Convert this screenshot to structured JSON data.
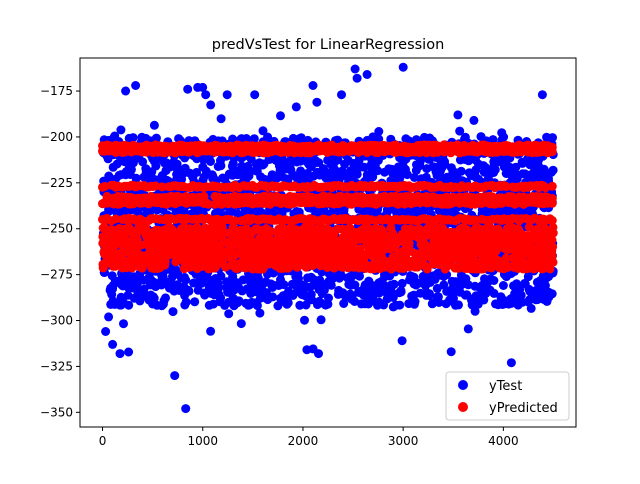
{
  "chart_data": {
    "type": "scatter",
    "title": "predVsTest for LinearRegression",
    "xlabel": "",
    "ylabel": "",
    "xlim": [
      -225,
      4725
    ],
    "ylim": [
      -358,
      -157
    ],
    "xticks": [
      0,
      1000,
      2000,
      3000,
      4000
    ],
    "xtick_labels": [
      "0",
      "1000",
      "2000",
      "3000",
      "4000"
    ],
    "yticks": [
      -175,
      -200,
      -225,
      -250,
      -275,
      -300,
      -325,
      -350
    ],
    "ytick_labels": [
      "−175",
      "−200",
      "−225",
      "−250",
      "−275",
      "−300",
      "−325",
      "−350"
    ],
    "grid": false,
    "legend": {
      "position": "lower-right",
      "entries": [
        "yTest",
        "yPredicted"
      ]
    },
    "series": [
      {
        "name": "yTest",
        "color": "#0000ff",
        "n": 4500,
        "x_range": [
          0,
          4500
        ],
        "distribution": "dense band from about -290 to -200, scattered from -330 to -165",
        "notable_points": [
          {
            "x": 30,
            "y": -306
          },
          {
            "x": 60,
            "y": -298
          },
          {
            "x": 100,
            "y": -313
          },
          {
            "x": 230,
            "y": -175
          },
          {
            "x": 330,
            "y": -172
          },
          {
            "x": 720,
            "y": -330
          },
          {
            "x": 830,
            "y": -348
          },
          {
            "x": 850,
            "y": -174
          },
          {
            "x": 950,
            "y": -173
          },
          {
            "x": 1000,
            "y": -173
          },
          {
            "x": 2100,
            "y": -172
          },
          {
            "x": 2520,
            "y": -163
          },
          {
            "x": 2540,
            "y": -168
          },
          {
            "x": 2640,
            "y": -166
          },
          {
            "x": 3000,
            "y": -162
          },
          {
            "x": 2990,
            "y": -311
          },
          {
            "x": 3480,
            "y": -317
          },
          {
            "x": 4080,
            "y": -323
          },
          {
            "x": 4390,
            "y": -177
          }
        ]
      },
      {
        "name": "yPredicted",
        "color": "#ff0000",
        "n": 4500,
        "x_range": [
          0,
          4500
        ],
        "bands": [
          -205,
          -208,
          -227,
          -233,
          -236,
          -245
        ],
        "dense_range": [
          -272,
          -249
        ]
      }
    ]
  }
}
